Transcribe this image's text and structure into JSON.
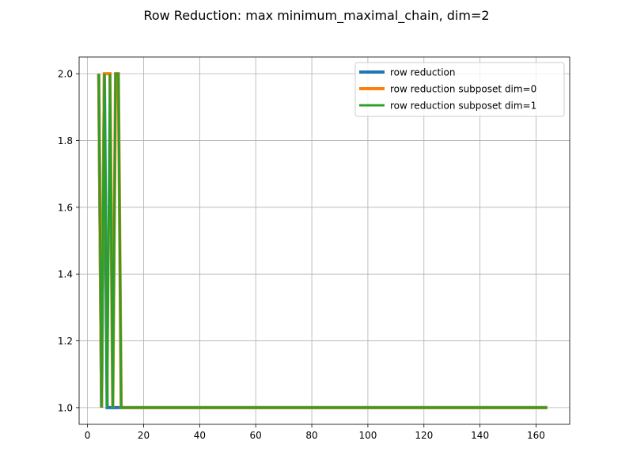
{
  "chart_data": {
    "type": "line",
    "title": "Row Reduction: max minimum_maximal_chain, dim=2",
    "xlabel": "",
    "ylabel": "",
    "xlim": [
      -3,
      172
    ],
    "ylim": [
      0.95,
      2.05
    ],
    "xticks": [
      0,
      20,
      40,
      60,
      80,
      100,
      120,
      140,
      160
    ],
    "yticks": [
      1.0,
      1.2,
      1.4,
      1.6,
      1.8,
      2.0
    ],
    "xtick_labels": [
      "0",
      "20",
      "40",
      "60",
      "80",
      "100",
      "120",
      "140",
      "160"
    ],
    "ytick_labels": [
      "1.0",
      "1.2",
      "1.4",
      "1.6",
      "1.8",
      "2.0"
    ],
    "grid": true,
    "legend_position": "top-right",
    "series": [
      {
        "name": "row reduction",
        "color": "#1f77b4",
        "x": [
          4,
          5,
          6,
          7,
          8,
          9,
          10,
          11,
          12,
          164
        ],
        "y": [
          2,
          1,
          2,
          1,
          1,
          1,
          1,
          1,
          1,
          1
        ]
      },
      {
        "name": "row reduction subposet dim=0",
        "color": "#ff7f0e",
        "x": [
          4,
          5,
          6,
          7,
          8,
          9,
          10,
          11,
          12,
          164
        ],
        "y": [
          2,
          1,
          2,
          2,
          2,
          1,
          2,
          2,
          1,
          1
        ]
      },
      {
        "name": "row reduction subposet dim=1",
        "color": "#2ca02c",
        "x": [
          4,
          5,
          6,
          7,
          8,
          9,
          10,
          11,
          12,
          164
        ],
        "y": [
          2,
          1,
          2,
          1,
          2,
          1,
          2,
          2,
          1,
          1
        ]
      }
    ]
  }
}
